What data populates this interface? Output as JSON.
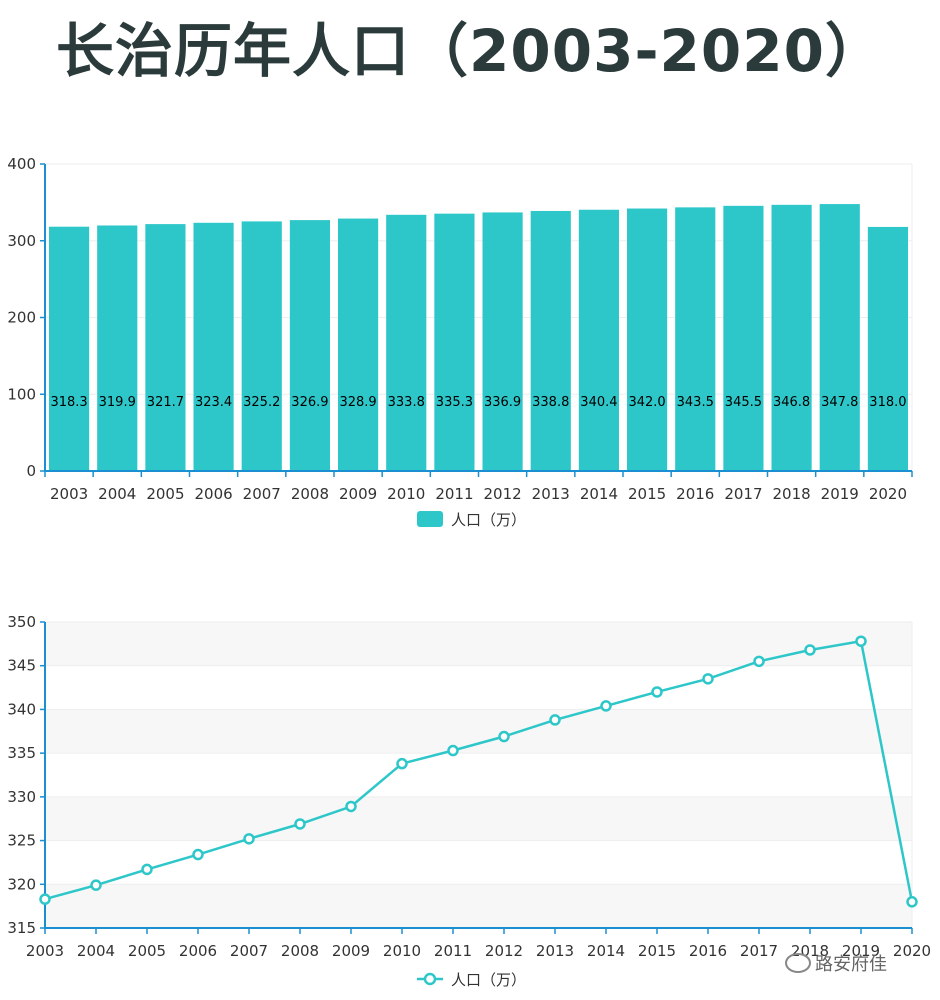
{
  "title": "长治历年人口（2003-2020）",
  "watermark": "路安府佳",
  "colors": {
    "series": "#2ec7c9",
    "axis": "#1a8fd1",
    "grid": "#eeeeee",
    "band": "#f7f7f7"
  },
  "chart_data": [
    {
      "type": "bar",
      "categories": [
        "2003",
        "2004",
        "2005",
        "2006",
        "2007",
        "2008",
        "2009",
        "2010",
        "2011",
        "2012",
        "2013",
        "2014",
        "2015",
        "2016",
        "2017",
        "2018",
        "2019",
        "2020"
      ],
      "series": [
        {
          "name": "人口（万）",
          "values": [
            318.3,
            319.9,
            321.7,
            323.4,
            325.2,
            326.9,
            328.9,
            333.8,
            335.3,
            336.9,
            338.8,
            340.4,
            342.0,
            343.5,
            345.5,
            346.8,
            347.8,
            318.0
          ]
        }
      ],
      "data_labels": [
        "318.3",
        "319.9",
        "321.7",
        "323.4",
        "325.2",
        "326.9",
        "328.9",
        "333.8",
        "335.3",
        "336.9",
        "338.8",
        "340.4",
        "342.0",
        "343.5",
        "345.5",
        "346.8",
        "347.8",
        "318.0"
      ],
      "ylim": [
        0,
        400
      ],
      "yticks": [
        "0",
        "100",
        "200",
        "300",
        "400"
      ],
      "grid": true,
      "legend": "bottom-center"
    },
    {
      "type": "line",
      "categories": [
        "2003",
        "2004",
        "2005",
        "2006",
        "2007",
        "2008",
        "2009",
        "2010",
        "2011",
        "2012",
        "2013",
        "2014",
        "2015",
        "2016",
        "2017",
        "2018",
        "2019",
        "2020"
      ],
      "series": [
        {
          "name": "人口（万）",
          "values": [
            318.3,
            319.9,
            321.7,
            323.4,
            325.2,
            326.9,
            328.9,
            333.8,
            335.3,
            336.9,
            338.8,
            340.4,
            342.0,
            343.5,
            345.5,
            346.8,
            347.8,
            318.0
          ]
        }
      ],
      "ylim": [
        315,
        350
      ],
      "yticks": [
        "315",
        "320",
        "325",
        "330",
        "335",
        "340",
        "345",
        "350"
      ],
      "grid": true,
      "legend": "bottom-center"
    }
  ]
}
